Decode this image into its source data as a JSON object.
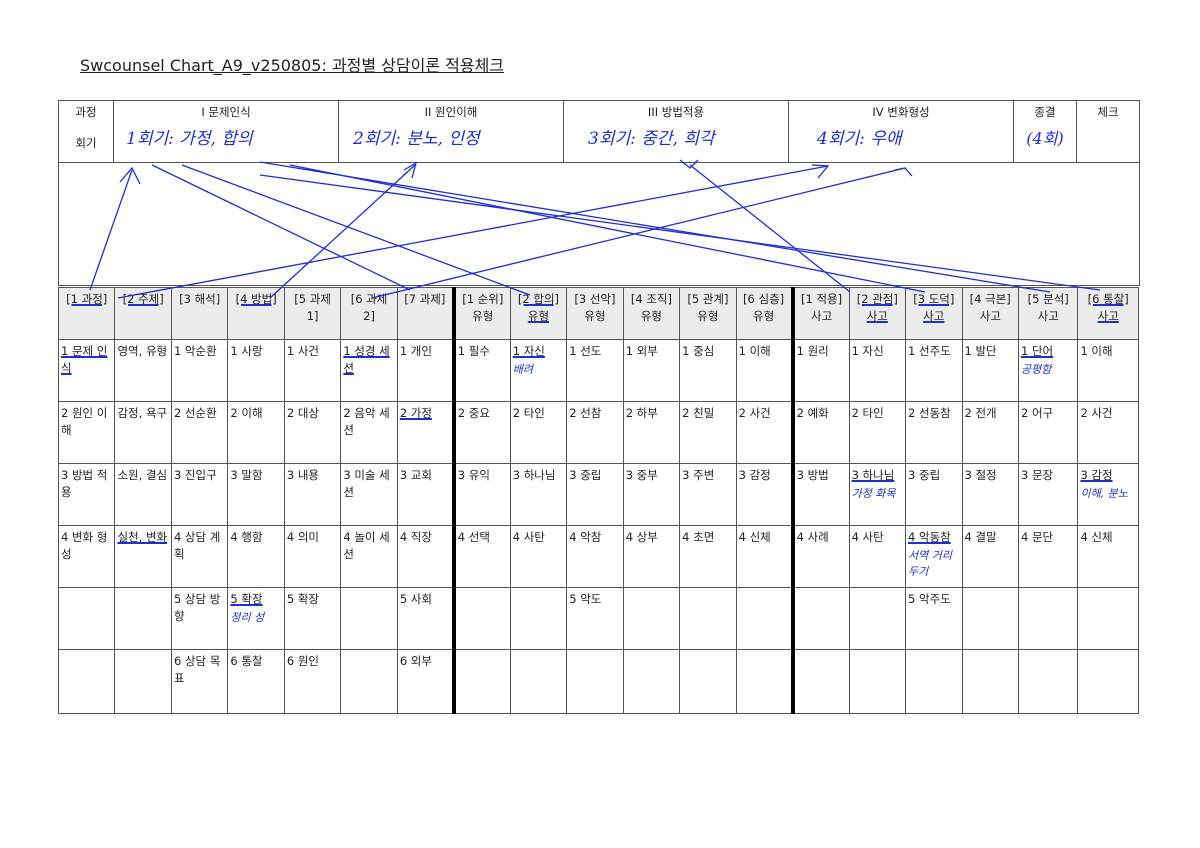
{
  "title": "Swcounsel Chart_A9_v250805: 과정별 상담이론 적용체크",
  "header": {
    "row1": [
      "과정",
      "I 문제인식",
      "II 원인이해",
      "III 방법적용",
      "IV 변화형성",
      "종결",
      "체크"
    ],
    "row2_label": "회기",
    "handwritten": [
      "1회기: 가정, 합의",
      "2회기: 분노, 인정",
      "3회기: 중간, 희각",
      "4회기: 우애",
      "(4회)"
    ]
  },
  "grid_head": [
    {
      "l1": "[1 과정]",
      "l2": "",
      "ul": true
    },
    {
      "l1": "[2 주제]",
      "l2": "",
      "ul": true
    },
    {
      "l1": "[3 해석]",
      "l2": "",
      "ul": false
    },
    {
      "l1": "[4 방법]",
      "l2": "",
      "ul": true
    },
    {
      "l1": "[5 과제 1]",
      "l2": "",
      "ul": false
    },
    {
      "l1": "[6 과제 2]",
      "l2": "",
      "ul": false
    },
    {
      "l1": "[7 과제]",
      "l2": "",
      "ul": false
    },
    {
      "l1": "[1 순위]",
      "l2": "유형",
      "ul": false
    },
    {
      "l1": "[2 합의]",
      "l2": "유형",
      "ul": true
    },
    {
      "l1": "[3 선악]",
      "l2": "유형",
      "ul": false
    },
    {
      "l1": "[4 조직]",
      "l2": "유형",
      "ul": false
    },
    {
      "l1": "[5 관계]",
      "l2": "유형",
      "ul": false
    },
    {
      "l1": "[6 심층]",
      "l2": "유형",
      "ul": false
    },
    {
      "l1": "[1 적용]",
      "l2": "사고",
      "ul": false
    },
    {
      "l1": "[2 관점]",
      "l2": "사고",
      "ul": true
    },
    {
      "l1": "[3 도덕]",
      "l2": "사고",
      "ul": true
    },
    {
      "l1": "[4 극본]",
      "l2": "사고",
      "ul": false
    },
    {
      "l1": "[5 분석]",
      "l2": "사고",
      "ul": false
    },
    {
      "l1": "[6 통찰]",
      "l2": "사고",
      "ul": true
    }
  ],
  "rows": [
    [
      "1 문제 인식",
      "영역, 유형",
      "1 악순환",
      "1 사랑",
      "1 사건",
      "1 성경 세션",
      "1 개인",
      "1 필수",
      "1 자신",
      "1 선도",
      "1 외부",
      "1 중심",
      "1 이해",
      "1 원리",
      "1 자신",
      "1 선주도",
      "1 발단",
      "1 단어",
      "1 이해"
    ],
    [
      "2 원인 이해",
      "감정, 욕구",
      "2 선순환",
      "2 이해",
      "2 대상",
      "2 음악 세션",
      "2 가정",
      "2 중요",
      "2 타인",
      "2 선참",
      "2 하부",
      "2 친밀",
      "2 사건",
      "2 예화",
      "2 타인",
      "2 선동참",
      "2 전개",
      "2 어구",
      "2 사건"
    ],
    [
      "3 방법 적용",
      "소원, 결심",
      "3 진입구",
      "3 말함",
      "3 내용",
      "3 미술 세션",
      "3 교회",
      "3 유익",
      "3 하나님",
      "3 중립",
      "3 중부",
      "3 주변",
      "3 감정",
      "3 방법",
      "3 하나님",
      "3 중립",
      "3 절정",
      "3 문장",
      "3 감정"
    ],
    [
      "4 변화 형성",
      "실천, 변화",
      "4 상담 계획",
      "4 행함",
      "4 의미",
      "4 놀이 세션",
      "4 직장",
      "4 선택",
      "4 사탄",
      "4 악참",
      "4 상부",
      "4 초면",
      "4 신체",
      "4 사례",
      "4 사탄",
      "4 악동참",
      "4 결말",
      "4 문단",
      "4 신체"
    ],
    [
      "",
      "",
      "5 상담 방향",
      "5 확장",
      "5 확장",
      "",
      "5 사회",
      "",
      "",
      "5 악도",
      "",
      "",
      "",
      "",
      "",
      "5 악주도",
      "",
      "",
      ""
    ],
    [
      "",
      "",
      "6 상담 목표",
      "6 통찰",
      "6 원인",
      "",
      "6 외부",
      "",
      "",
      "",
      "",
      "",
      "",
      "",
      "",
      "",
      "",
      "",
      ""
    ]
  ],
  "handnotes": {
    "r0c8": "배려",
    "r0c17": "공평함",
    "r2c14": "가정 화목",
    "r2c18": "이해, 분노",
    "r3c15": "서역 거리두기",
    "r4c3": "정리 성"
  },
  "colors": {
    "ink": "#1f2fd6",
    "border": "#555555",
    "gray": "#ececec"
  }
}
